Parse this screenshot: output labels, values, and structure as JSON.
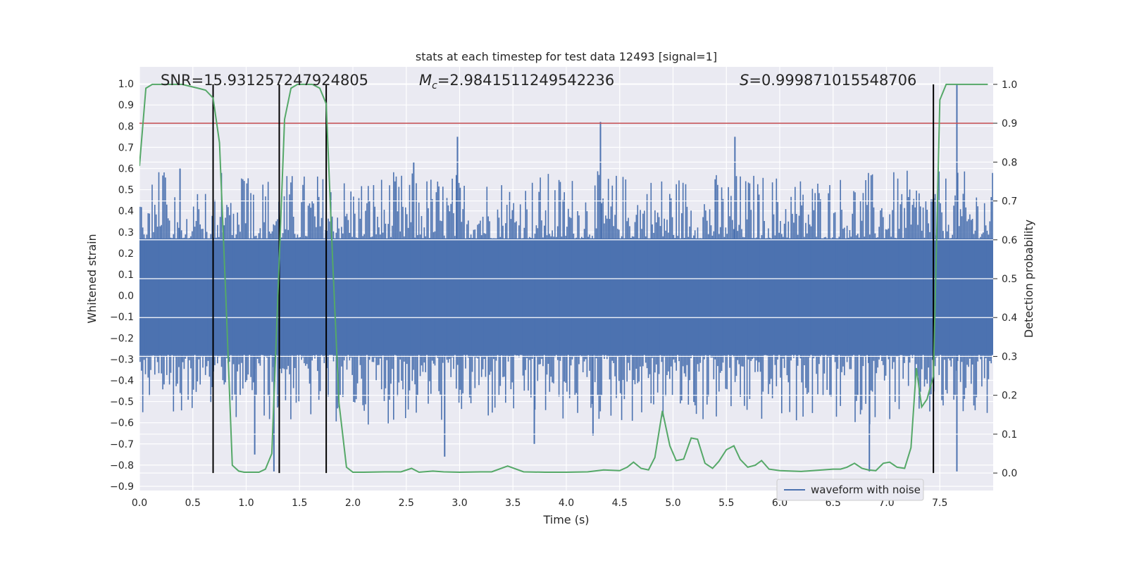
{
  "chart_data": {
    "type": "line",
    "title": "stats at each timestep for test data 12493 [signal=1]",
    "xlabel": "Time (s)",
    "ylabel": "Whitened strain",
    "y2label": "Detection probability",
    "xlim": [
      0.0,
      8.0
    ],
    "ylim": [
      -0.92,
      1.08
    ],
    "y2lim": [
      -0.045,
      1.045
    ],
    "xticks": [
      0.0,
      0.5,
      1.0,
      1.5,
      2.0,
      2.5,
      3.0,
      3.5,
      4.0,
      4.5,
      5.0,
      5.5,
      6.0,
      6.5,
      7.0,
      7.5
    ],
    "xtick_labels": [
      "0.0",
      "0.5",
      "1.0",
      "1.5",
      "2.0",
      "2.5",
      "3.0",
      "3.5",
      "4.0",
      "4.5",
      "5.0",
      "5.5",
      "6.0",
      "6.5",
      "7.0",
      "7.5"
    ],
    "yticks": [
      1.0,
      0.9,
      0.8,
      0.7,
      0.6,
      0.5,
      0.4,
      0.3,
      0.2,
      0.1,
      0.0,
      -0.1,
      -0.2,
      -0.3,
      -0.4,
      -0.5,
      -0.6,
      -0.7,
      -0.8,
      -0.9
    ],
    "ytick_labels": [
      "1.0",
      "0.9",
      "0.8",
      "0.7",
      "0.6",
      "0.5",
      "0.4",
      "0.3",
      "0.2",
      "0.1",
      "0.0",
      "−0.1",
      "−0.2",
      "−0.3",
      "−0.4",
      "−0.5",
      "−0.6",
      "−0.7",
      "−0.8",
      "−0.9"
    ],
    "y2ticks": [
      1.0,
      0.9,
      0.8,
      0.7,
      0.6,
      0.5,
      0.4,
      0.3,
      0.2,
      0.1,
      0.0
    ],
    "y2tick_labels": [
      "1.0",
      "0.9",
      "0.8",
      "0.7",
      "0.6",
      "0.5",
      "0.4",
      "0.3",
      "0.2",
      "0.1",
      "0.0"
    ],
    "annotations": {
      "snr": "SNR=15.931257247924805",
      "mc_symbol": "M",
      "mc_sub": "c",
      "mc_value": "=2.9841511249542236",
      "s_symbol": "S",
      "s_value": "=0.999871015548706"
    },
    "legend": {
      "label": "waveform with noise",
      "position": "lower-right"
    },
    "threshold": {
      "y2": 0.9,
      "color": "#c44e52"
    },
    "event_lines_x": [
      0.69,
      1.31,
      1.75,
      7.44
    ],
    "event_lines_y2": [
      0.0,
      1.0
    ],
    "waveform": {
      "name": "waveform with noise",
      "color": "#4c72b0",
      "samples": 640,
      "seed": 12493,
      "core_band": [
        -0.28,
        0.27
      ],
      "spikes": [
        {
          "x": 2.98,
          "y": 0.75
        },
        {
          "x": 4.32,
          "y": 0.82
        },
        {
          "x": 5.58,
          "y": 0.75
        },
        {
          "x": 7.66,
          "y": 1.0
        },
        {
          "x": 7.66,
          "y": -0.83
        },
        {
          "x": 6.84,
          "y": -0.83
        },
        {
          "x": 1.26,
          "y": -0.83
        },
        {
          "x": 1.08,
          "y": -0.75
        },
        {
          "x": 2.86,
          "y": -0.76
        },
        {
          "x": 3.7,
          "y": -0.7
        },
        {
          "x": 4.25,
          "y": -0.66
        },
        {
          "x": 0.38,
          "y": 0.6
        },
        {
          "x": 2.57,
          "y": 0.63
        }
      ]
    },
    "series": [
      {
        "name": "Detection probability",
        "color": "#55a868",
        "axis": "y2",
        "x": [
          0.0,
          0.06,
          0.12,
          0.25,
          0.4,
          0.55,
          0.62,
          0.69,
          0.75,
          0.81,
          0.87,
          0.93,
          0.98,
          1.05,
          1.12,
          1.18,
          1.24,
          1.3,
          1.36,
          1.42,
          1.48,
          1.55,
          1.62,
          1.69,
          1.75,
          1.81,
          1.87,
          1.94,
          2.0,
          2.1,
          2.3,
          2.45,
          2.55,
          2.62,
          2.75,
          2.85,
          3.0,
          3.2,
          3.3,
          3.45,
          3.6,
          3.8,
          4.0,
          4.2,
          4.35,
          4.5,
          4.57,
          4.63,
          4.7,
          4.77,
          4.83,
          4.9,
          4.97,
          5.03,
          5.1,
          5.17,
          5.23,
          5.3,
          5.37,
          5.43,
          5.5,
          5.57,
          5.63,
          5.7,
          5.77,
          5.83,
          5.9,
          6.0,
          6.2,
          6.4,
          6.5,
          6.57,
          6.63,
          6.7,
          6.77,
          6.83,
          6.9,
          6.97,
          7.03,
          7.1,
          7.17,
          7.23,
          7.28,
          7.33,
          7.38,
          7.44,
          7.5,
          7.56,
          7.62,
          7.75,
          7.8,
          7.95
        ],
        "y": [
          0.79,
          0.99,
          1.0,
          1.0,
          1.0,
          0.99,
          0.985,
          0.965,
          0.85,
          0.45,
          0.02,
          0.005,
          0.002,
          0.002,
          0.002,
          0.01,
          0.05,
          0.48,
          0.91,
          0.99,
          1.0,
          1.0,
          1.0,
          0.99,
          0.95,
          0.55,
          0.18,
          0.015,
          0.002,
          0.002,
          0.003,
          0.003,
          0.012,
          0.002,
          0.005,
          0.003,
          0.002,
          0.003,
          0.003,
          0.018,
          0.003,
          0.002,
          0.002,
          0.003,
          0.008,
          0.006,
          0.015,
          0.028,
          0.012,
          0.008,
          0.04,
          0.16,
          0.07,
          0.032,
          0.036,
          0.09,
          0.087,
          0.025,
          0.012,
          0.03,
          0.06,
          0.07,
          0.035,
          0.015,
          0.02,
          0.032,
          0.01,
          0.006,
          0.004,
          0.008,
          0.01,
          0.01,
          0.015,
          0.025,
          0.012,
          0.008,
          0.006,
          0.025,
          0.028,
          0.015,
          0.012,
          0.065,
          0.27,
          0.17,
          0.19,
          0.25,
          0.96,
          1.0,
          1.0,
          1.0,
          1.0,
          1.0
        ]
      }
    ]
  }
}
